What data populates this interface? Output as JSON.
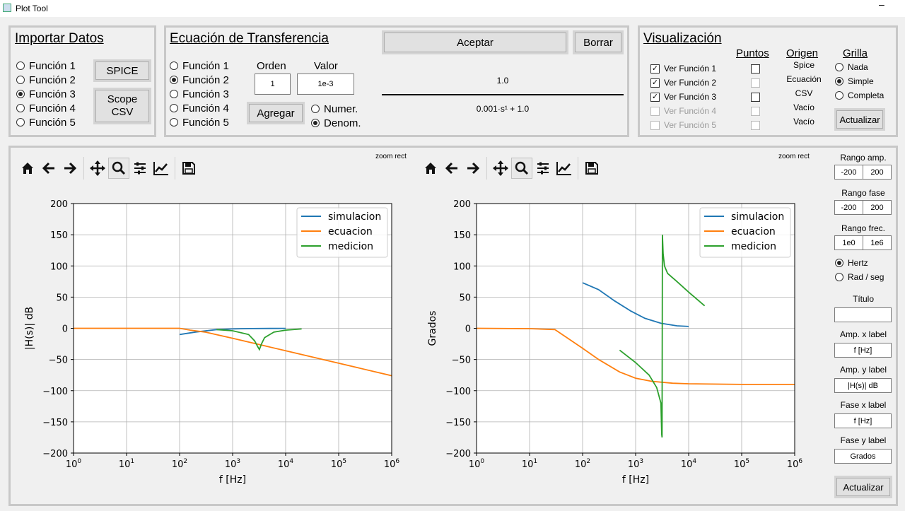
{
  "window": {
    "title": "Plot Tool",
    "minimize_label": "–"
  },
  "importar": {
    "title": "Importar Datos",
    "functions": [
      {
        "label": "Función 1",
        "selected": false
      },
      {
        "label": "Función 2",
        "selected": false
      },
      {
        "label": "Función 3",
        "selected": true
      },
      {
        "label": "Función 4",
        "selected": false
      },
      {
        "label": "Función 5",
        "selected": false
      }
    ],
    "spice_button": "SPICE",
    "scope_button_line1": "Scope",
    "scope_button_line2": "CSV"
  },
  "ecuacion": {
    "title": "Ecuación de Transferencia",
    "functions": [
      {
        "label": "Función 1",
        "selected": false
      },
      {
        "label": "Función 2",
        "selected": true
      },
      {
        "label": "Función 3",
        "selected": false
      },
      {
        "label": "Función 4",
        "selected": false
      },
      {
        "label": "Función 5",
        "selected": false
      }
    ],
    "orden_label": "Orden",
    "valor_label": "Valor",
    "orden_value": "1",
    "valor_value": "1e-3",
    "agregar_button": "Agregar",
    "numer_label": "Numer.",
    "denom_label": "Denom.",
    "numer_selected": false,
    "denom_selected": true,
    "aceptar_button": "Aceptar",
    "borrar_button": "Borrar",
    "numerator": "1.0",
    "denominator": "0.001·s¹ + 1.0"
  },
  "visualizacion": {
    "title": "Visualización",
    "puntos_header": "Puntos",
    "origen_header": "Origen",
    "grilla_header": "Grilla",
    "rows": [
      {
        "label": "Ver Función 1",
        "checked": true,
        "enabled": true,
        "puntos": false,
        "puntos_enabled": true,
        "origen": "Spice"
      },
      {
        "label": "Ver Función 2",
        "checked": true,
        "enabled": true,
        "puntos": false,
        "puntos_enabled": false,
        "origen": "Ecuación"
      },
      {
        "label": "Ver Función 3",
        "checked": true,
        "enabled": true,
        "puntos": false,
        "puntos_enabled": true,
        "origen": "CSV"
      },
      {
        "label": "Ver Función 4",
        "checked": false,
        "enabled": false,
        "puntos": false,
        "puntos_enabled": false,
        "origen": "Vacío"
      },
      {
        "label": "Ver Función 5",
        "checked": false,
        "enabled": false,
        "puntos": false,
        "puntos_enabled": false,
        "origen": "Vacío"
      }
    ],
    "grilla_options": [
      {
        "label": "Nada",
        "selected": false
      },
      {
        "label": "Simple",
        "selected": true
      },
      {
        "label": "Completa",
        "selected": false
      }
    ],
    "actualizar_button": "Actualizar"
  },
  "toolbar": {
    "mode_label": "zoom rect",
    "icons": [
      "home-icon",
      "back-icon",
      "forward-icon",
      "pan-icon",
      "zoom-icon",
      "configure-subplots-icon",
      "edit-axis-icon",
      "save-icon"
    ]
  },
  "side_panel": {
    "rango_amp_label": "Rango amp.",
    "rango_amp_min": "-200",
    "rango_amp_max": "200",
    "rango_fase_label": "Rango fase",
    "rango_fase_min": "-200",
    "rango_fase_max": "200",
    "rango_frec_label": "Rango frec.",
    "rango_frec_min": "1e0",
    "rango_frec_max": "1e6",
    "hertz_label": "Hertz",
    "rad_label": "Rad / seg",
    "hertz_selected": true,
    "titulo_label": "Título",
    "titulo_value": "",
    "amp_x_label": "Amp. x label",
    "amp_x_value": "f [Hz]",
    "amp_y_label": "Amp. y label",
    "amp_y_value": "|H(s)| dB",
    "fase_x_label": "Fase x label",
    "fase_x_value": "f [Hz]",
    "fase_y_label": "Fase y label",
    "fase_y_value": "Grados",
    "actualizar_button": "Actualizar"
  },
  "chart_data": [
    {
      "type": "line",
      "title": "",
      "xlabel": "f [Hz]",
      "ylabel": "|H(s)| dB",
      "xscale": "log",
      "xlim": [
        1,
        1000000
      ],
      "ylim": [
        -200,
        200
      ],
      "x_ticks": [
        "10^0",
        "10^1",
        "10^2",
        "10^3",
        "10^4",
        "10^5",
        "10^6"
      ],
      "y_ticks": [
        200,
        150,
        100,
        50,
        0,
        -50,
        -100,
        -150,
        -200
      ],
      "grid": true,
      "legend_position": "top-right",
      "series": [
        {
          "name": "simulacion",
          "color": "#1f77b4",
          "x": [
            100,
            200,
            500,
            1000,
            2000,
            5000,
            10000
          ],
          "y": [
            -10,
            -6,
            -2,
            -1,
            -0.5,
            -0.2,
            -0.1
          ]
        },
        {
          "name": "ecuacion",
          "color": "#ff7f0e",
          "x": [
            1,
            10,
            100,
            159,
            300,
            1000,
            10000,
            100000,
            1000000
          ],
          "y": [
            0,
            0,
            -0.04,
            -3,
            -6,
            -16,
            -36,
            -56,
            -76
          ]
        },
        {
          "name": "medicion",
          "color": "#2ca02c",
          "x": [
            500,
            1000,
            2000,
            2600,
            3000,
            3200,
            3500,
            4000,
            6000,
            10000,
            20000
          ],
          "y": [
            -2,
            -4,
            -10,
            -20,
            -30,
            -34,
            -25,
            -15,
            -6,
            -3,
            -1
          ]
        }
      ]
    },
    {
      "type": "line",
      "title": "",
      "xlabel": "f [Hz]",
      "ylabel": "Grados",
      "xscale": "log",
      "xlim": [
        1,
        1000000
      ],
      "ylim": [
        -200,
        200
      ],
      "x_ticks": [
        "10^0",
        "10^1",
        "10^2",
        "10^3",
        "10^4",
        "10^5",
        "10^6"
      ],
      "y_ticks": [
        200,
        150,
        100,
        50,
        0,
        -50,
        -100,
        -150,
        -200
      ],
      "grid": true,
      "legend_position": "top-right",
      "series": [
        {
          "name": "simulacion",
          "color": "#1f77b4",
          "x": [
            100,
            200,
            400,
            800,
            1500,
            3000,
            6000,
            10000
          ],
          "y": [
            73,
            62,
            44,
            28,
            16,
            8,
            4,
            3
          ]
        },
        {
          "name": "ecuacion",
          "color": "#ff7f0e",
          "x": [
            1,
            10,
            30,
            100,
            200,
            500,
            1000,
            2000,
            5000,
            10000,
            100000,
            1000000
          ],
          "y": [
            0,
            -0.6,
            -2,
            -32,
            -50,
            -70,
            -80,
            -85,
            -88,
            -89,
            -90,
            -90
          ]
        },
        {
          "name": "medicion",
          "color": "#2ca02c",
          "x": [
            500,
            1000,
            1800,
            2500,
            3000,
            3100,
            3150,
            3200,
            3300,
            3500,
            4000,
            6000,
            10000,
            20000
          ],
          "y": [
            -35,
            -55,
            -75,
            -95,
            -120,
            -170,
            -175,
            150,
            120,
            100,
            88,
            75,
            58,
            36
          ]
        }
      ]
    }
  ]
}
